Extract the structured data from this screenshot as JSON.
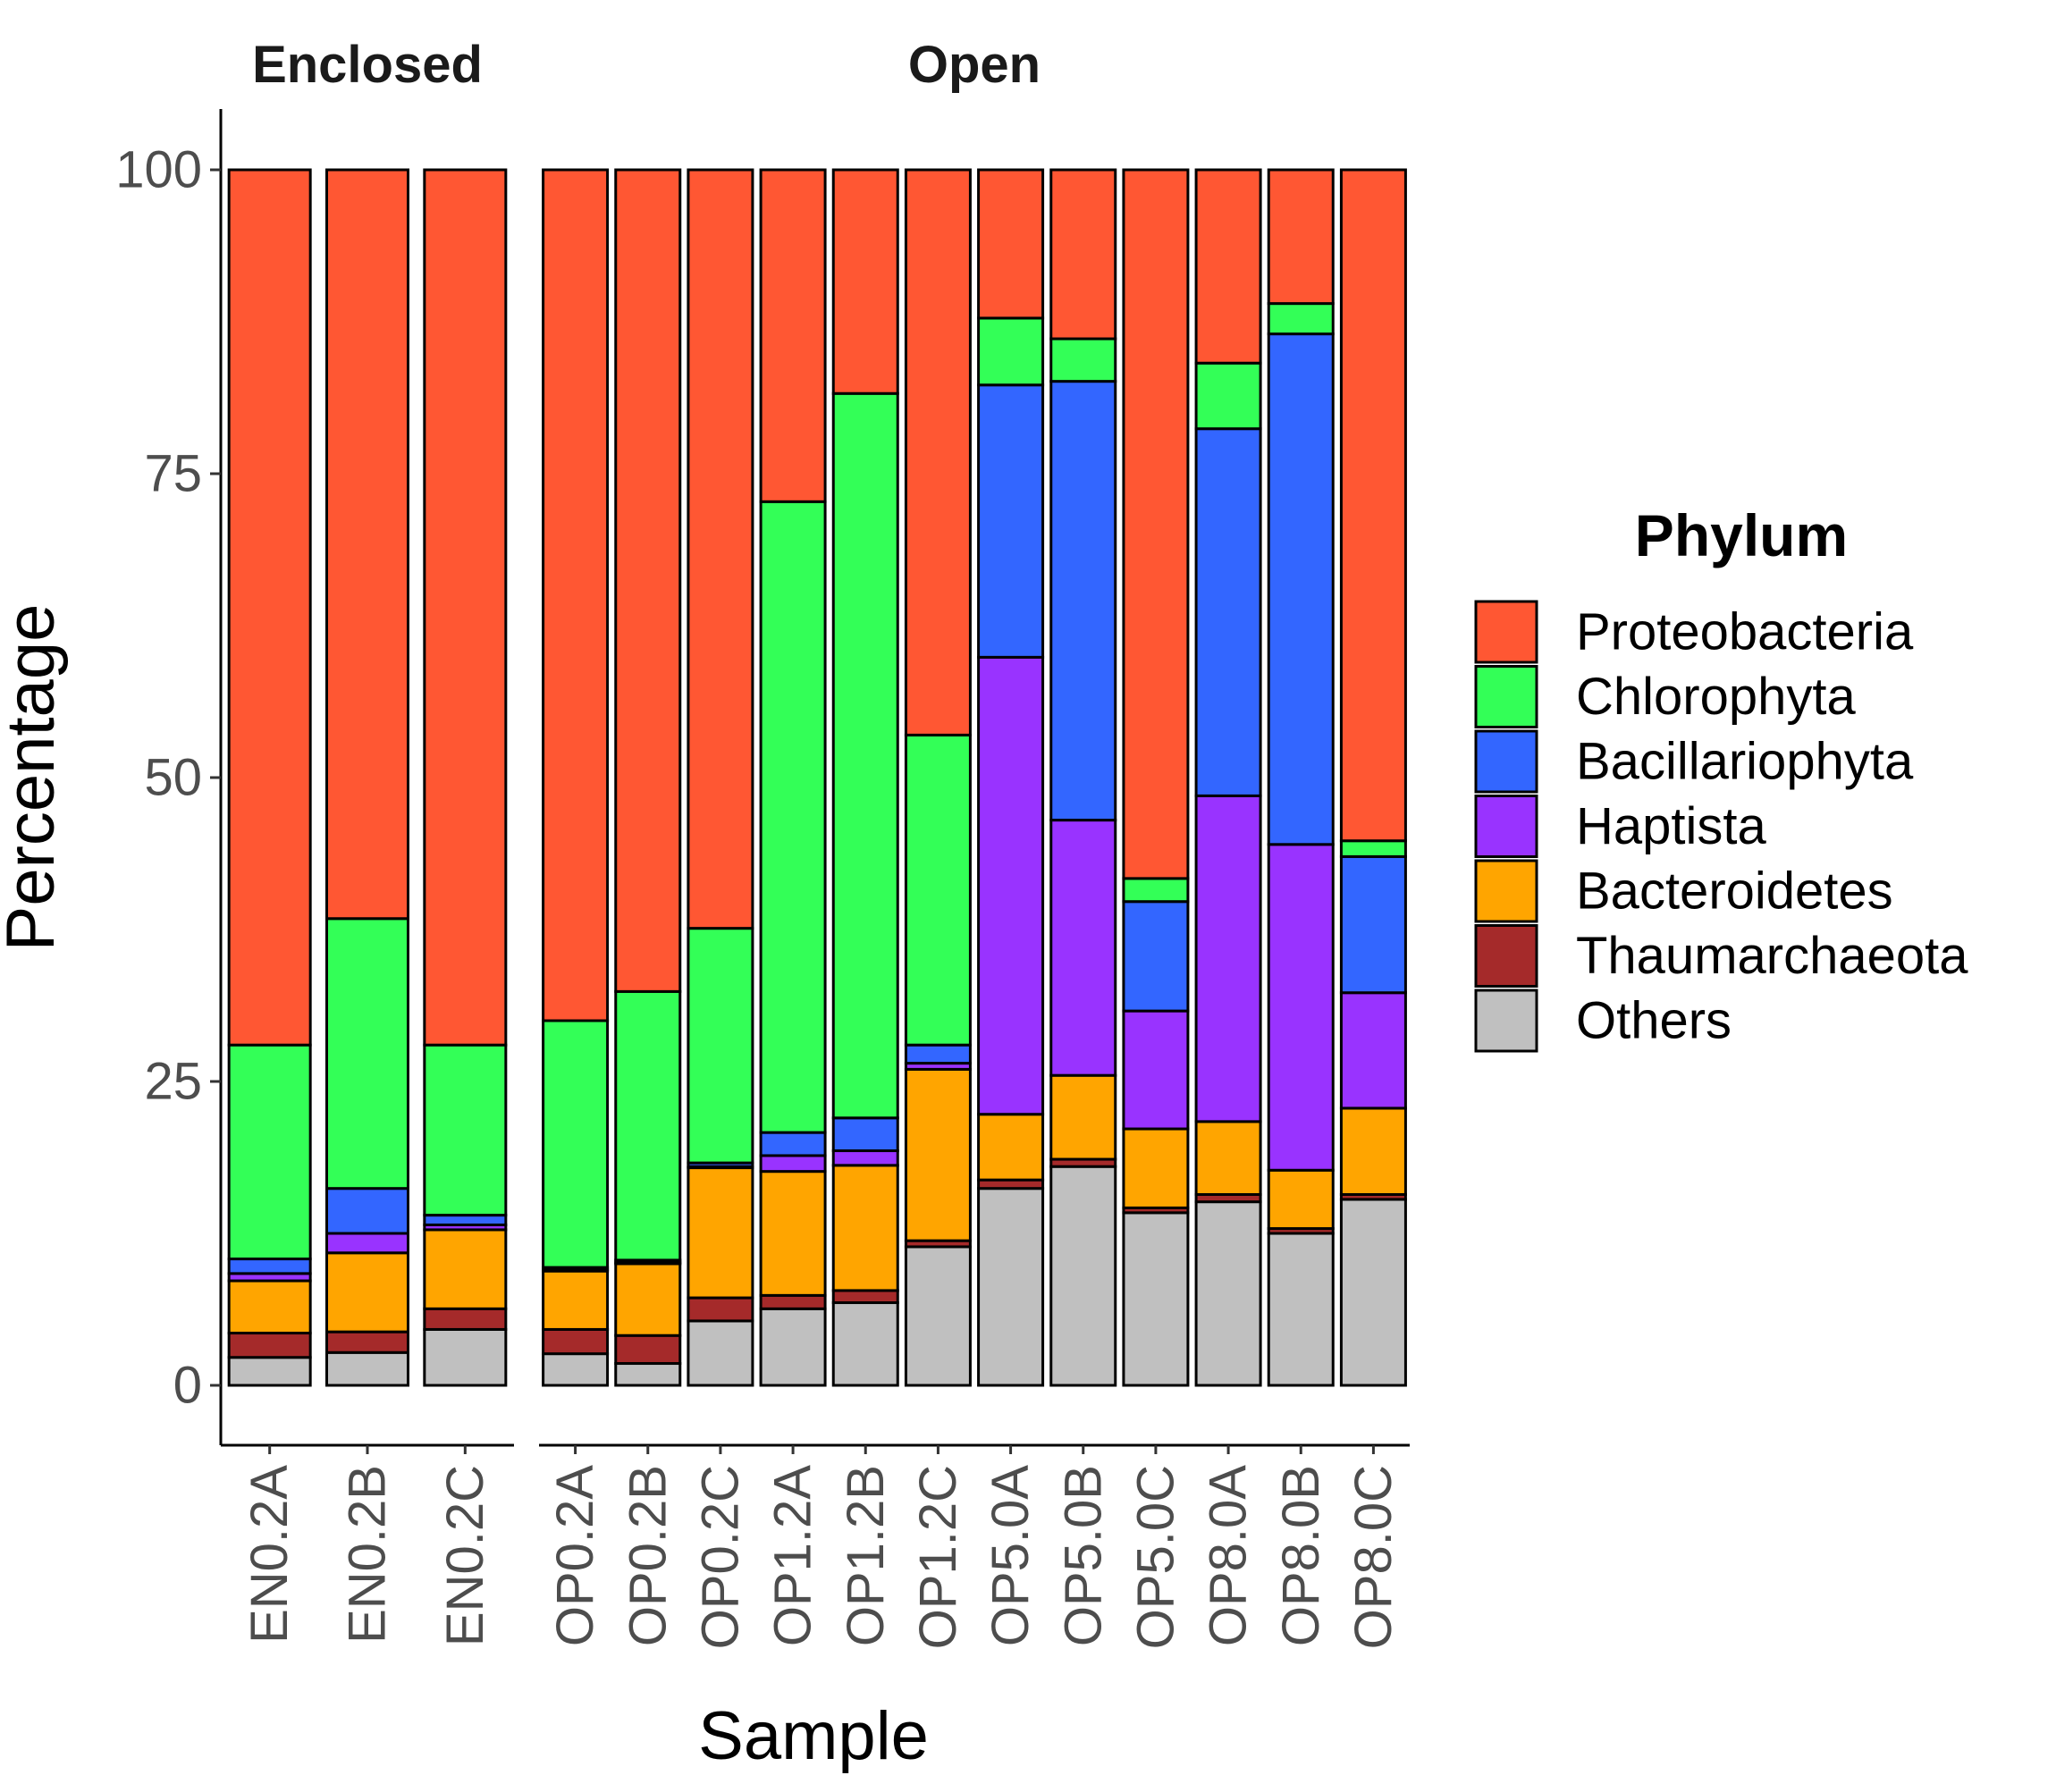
{
  "chart_data": {
    "type": "bar",
    "stacked": true,
    "xlabel": "Sample",
    "ylabel": "Percentage",
    "ylim": [
      0,
      100
    ],
    "yticks": [
      0,
      25,
      50,
      75,
      100
    ],
    "grid": false,
    "legend": {
      "title": "Phylum",
      "position": "right"
    },
    "facets": [
      {
        "label": "Enclosed",
        "categories": [
          "EN0.2A",
          "EN0.2B",
          "EN0.2C"
        ]
      },
      {
        "label": "Open",
        "categories": [
          "OP0.2A",
          "OP0.2B",
          "OP0.2C",
          "OP1.2A",
          "OP1.2B",
          "OP1.2C",
          "OP5.0A",
          "OP5.0B",
          "OP5.0C",
          "OP8.0A",
          "OP8.0B",
          "OP8.0C"
        ]
      }
    ],
    "categories": [
      "EN0.2A",
      "EN0.2B",
      "EN0.2C",
      "OP0.2A",
      "OP0.2B",
      "OP0.2C",
      "OP1.2A",
      "OP1.2B",
      "OP1.2C",
      "OP5.0A",
      "OP5.0B",
      "OP5.0C",
      "OP8.0A",
      "OP8.0B",
      "OP8.0C"
    ],
    "series": [
      {
        "name": "Proteobacteria",
        "color": "#FF5733",
        "values": [
          72.0,
          61.6,
          72.0,
          70.0,
          67.6,
          62.4,
          27.3,
          18.4,
          46.5,
          12.2,
          13.9,
          58.3,
          15.9,
          11.0,
          55.2
        ]
      },
      {
        "name": "Chlorophyta",
        "color": "#33FF57",
        "values": [
          17.6,
          22.2,
          14.0,
          20.3,
          22.1,
          19.3,
          51.9,
          59.6,
          25.5,
          5.5,
          3.5,
          1.9,
          5.4,
          2.5,
          1.3
        ]
      },
      {
        "name": "Bacillariophyta",
        "color": "#3366FF",
        "values": [
          1.2,
          3.7,
          0.8,
          0.2,
          0.2,
          0.3,
          1.9,
          2.7,
          1.5,
          22.4,
          36.1,
          9.0,
          30.2,
          42.0,
          11.2
        ]
      },
      {
        "name": "Haptista",
        "color": "#9933FF",
        "values": [
          0.6,
          1.6,
          0.4,
          0.1,
          0.1,
          0.1,
          1.3,
          1.2,
          0.5,
          37.6,
          21.0,
          9.7,
          26.8,
          26.8,
          9.5
        ]
      },
      {
        "name": "Bacteroidetes",
        "color": "#FFA500",
        "values": [
          4.3,
          6.5,
          6.5,
          4.8,
          5.9,
          10.7,
          10.2,
          10.3,
          14.1,
          5.4,
          6.9,
          6.5,
          6.0,
          4.8,
          7.1
        ]
      },
      {
        "name": "Thaumarchaeota",
        "color": "#A52A2A",
        "values": [
          2.0,
          1.7,
          1.7,
          2.0,
          2.3,
          1.9,
          1.1,
          1.0,
          0.5,
          0.7,
          0.6,
          0.4,
          0.6,
          0.4,
          0.4
        ]
      },
      {
        "name": "Others",
        "color": "#C0C0C0",
        "values": [
          2.3,
          2.7,
          4.6,
          2.6,
          1.8,
          5.3,
          6.3,
          6.8,
          11.4,
          16.2,
          18.0,
          14.2,
          15.1,
          12.5,
          15.3
        ]
      }
    ]
  }
}
